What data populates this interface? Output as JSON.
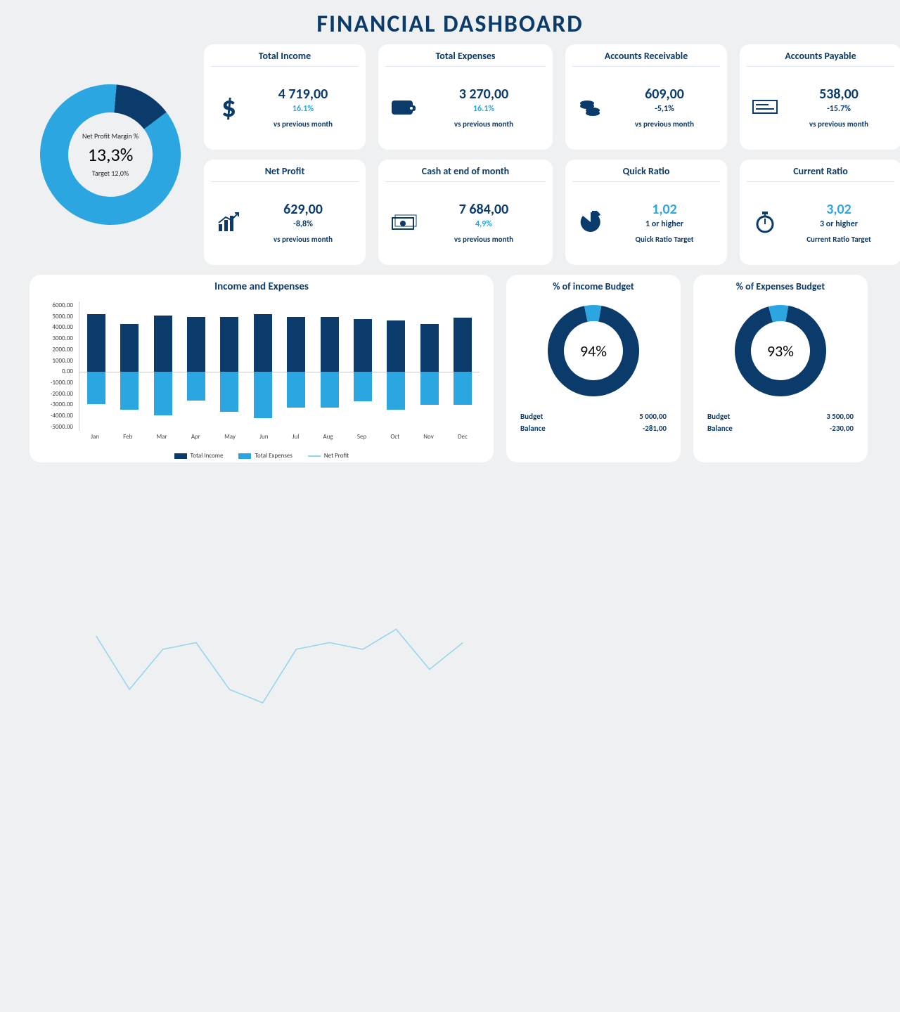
{
  "title": "FINANCIAL DASHBOARD",
  "colors": {
    "dark": "#0b3b6b",
    "light": "#2ca6e0",
    "line": "#8fd5ef",
    "bg": "#eef0f1",
    "card": "#ffffff"
  },
  "cards": {
    "income": {
      "title": "Total Income",
      "value": "4 719,00",
      "delta": "16.1%",
      "delta_sign": "pos",
      "sub": "vs previous month"
    },
    "expenses": {
      "title": "Total Expenses",
      "value": "3 270,00",
      "delta": "16.1%",
      "delta_sign": "pos",
      "sub": "vs previous month"
    },
    "ar": {
      "title": "Accounts Receivable",
      "value": "609,00",
      "delta": "-5,1%",
      "delta_sign": "neg",
      "sub": "vs previous month"
    },
    "ap": {
      "title": "Accounts Payable",
      "value": "538,00",
      "delta": "-15.7%",
      "delta_sign": "neg",
      "sub": "vs previous month"
    },
    "netprofit": {
      "title": "Net Profit",
      "value": "629,00",
      "delta": "-8,8%",
      "delta_sign": "neg",
      "sub": "vs previous month"
    },
    "cash": {
      "title": "Cash at end of month",
      "value": "7 684,00",
      "delta": "4,9%",
      "delta_sign": "pos",
      "sub": "vs previous month"
    },
    "quick": {
      "title": "Quick Ratio",
      "value": "1,02",
      "delta": "1 or higher",
      "sub": "Quick Ratio Target"
    },
    "current": {
      "title": "Current Ratio",
      "value": "3,02",
      "delta": "3 or higher",
      "sub": "Current Ratio Target"
    }
  },
  "center_donut": {
    "label": "Net Profit Margin %",
    "value": "13,3%",
    "target": "Target 12,0%",
    "dark_pct": 13.3,
    "ring_thickness": 40,
    "colors": {
      "dark": "#0b3b6b",
      "light": "#2ca6e0"
    }
  },
  "bar_chart": {
    "title": "Income and Expenses",
    "y_ticks": [
      "6000.00",
      "5000.00",
      "4000.00",
      "3000.00",
      "2000.00",
      "1000.00",
      "0.00",
      "-1000.00",
      "-2000.00",
      "-3000.00",
      "-4000.00",
      "-5000.00"
    ],
    "y_min": -5000,
    "y_max": 6000,
    "months": [
      "Jan",
      "Feb",
      "Mar",
      "Apr",
      "May",
      "Jun",
      "Jul",
      "Aug",
      "Sep",
      "Oct",
      "Nov",
      "Dec"
    ],
    "income": [
      4900,
      4100,
      4800,
      4700,
      4700,
      4900,
      4700,
      4700,
      4500,
      4400,
      4100,
      4600
    ],
    "expenses": [
      -2700,
      -3200,
      -3700,
      -2400,
      -3400,
      -3900,
      -3000,
      -3000,
      -2500,
      -3200,
      -2800,
      -2800
    ],
    "netprofit": [
      1000,
      200,
      800,
      900,
      200,
      0,
      800,
      900,
      800,
      1100,
      500,
      900
    ],
    "legend": {
      "a": "Total Income",
      "b": "Total Expenses",
      "c": "Net Profit"
    },
    "colors": {
      "income": "#0b3b6b",
      "expenses": "#2ca6e0",
      "line": "#8fd5ef"
    }
  },
  "budget_income": {
    "title": "% of income Budget",
    "pct": 94,
    "pct_label": "94%",
    "budget_label": "Budget",
    "budget_value": "5 000,00",
    "balance_label": "Balance",
    "balance_value": "-281,00",
    "colors": {
      "dark": "#0b3b6b",
      "light": "#2ca6e0"
    }
  },
  "budget_expenses": {
    "title": "% of Expenses Budget",
    "pct": 93,
    "pct_label": "93%",
    "budget_label": "Budget",
    "budget_value": "3 500,00",
    "balance_label": "Balance",
    "balance_value": "-230,00",
    "colors": {
      "dark": "#0b3b6b",
      "light": "#2ca6e0"
    }
  }
}
